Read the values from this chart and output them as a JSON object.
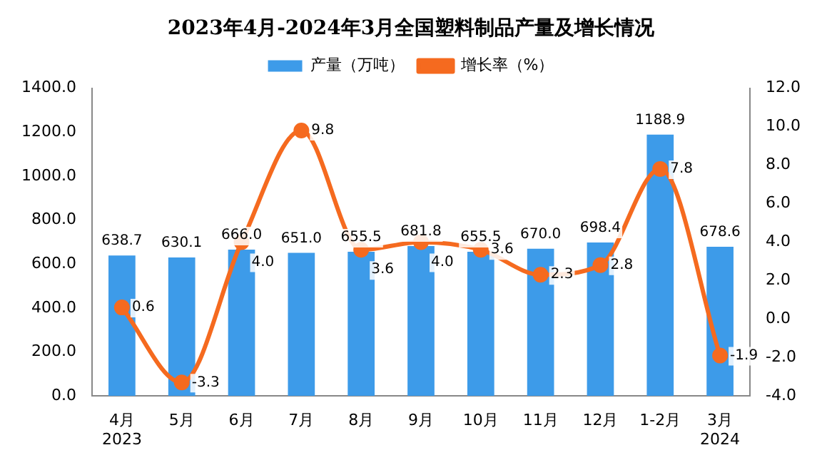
{
  "chart_data": {
    "type": "bar",
    "title": "2023年4月-2024年3月全国塑料制品产量及增长情况",
    "categories": [
      "4月\n2023",
      "5月",
      "6月",
      "7月",
      "8月",
      "9月",
      "10月",
      "11月",
      "12月",
      "1-2月",
      "3月\n2024"
    ],
    "series": [
      {
        "name": "产量（万吨）",
        "color": "#3d9be9",
        "values": [
          638.7,
          630.1,
          666.0,
          651.0,
          655.5,
          681.8,
          655.5,
          670.0,
          698.4,
          1188.9,
          678.6
        ],
        "value_labels": [
          "638.7",
          "630.1",
          "666.0",
          "651.0",
          "655.5",
          "681.8",
          "655.5",
          "670.0",
          "698.4",
          "1188.9",
          "678.6"
        ]
      },
      {
        "name": "增长率（%）",
        "type": "line",
        "axis": "y2",
        "color": "#f56a1f",
        "marker": "circle",
        "values": [
          0.6,
          -3.3,
          4.0,
          9.8,
          3.6,
          4.0,
          3.6,
          2.3,
          2.8,
          7.8,
          -1.9
        ],
        "value_labels": [
          "0.6",
          "-3.3",
          "4.0",
          "9.8",
          "3.6",
          "4.0",
          "3.6",
          "2.3",
          "2.8",
          "7.8",
          "-1.9"
        ]
      }
    ],
    "ylim": [
      0,
      1400
    ],
    "yticks": [
      {
        "value": 0,
        "label": "0.0"
      },
      {
        "value": 200,
        "label": "200.0"
      },
      {
        "value": 400,
        "label": "400.0"
      },
      {
        "value": 600,
        "label": "600.0"
      },
      {
        "value": 800,
        "label": "800.0"
      },
      {
        "value": 1000,
        "label": "1000.0"
      },
      {
        "value": 1200,
        "label": "1200.0"
      },
      {
        "value": 1400,
        "label": "1400.0"
      }
    ],
    "y2lim": [
      -4,
      12
    ],
    "y2ticks": [
      {
        "value": -4,
        "label": "-4.0"
      },
      {
        "value": -2,
        "label": "-2.0"
      },
      {
        "value": 0,
        "label": "0.0"
      },
      {
        "value": 2,
        "label": "2.0"
      },
      {
        "value": 4,
        "label": "4.0"
      },
      {
        "value": 6,
        "label": "6.0"
      },
      {
        "value": 8,
        "label": "8.0"
      },
      {
        "value": 10,
        "label": "10.0"
      },
      {
        "value": 12,
        "label": "12.0"
      }
    ],
    "grid": false,
    "legend": "top"
  }
}
